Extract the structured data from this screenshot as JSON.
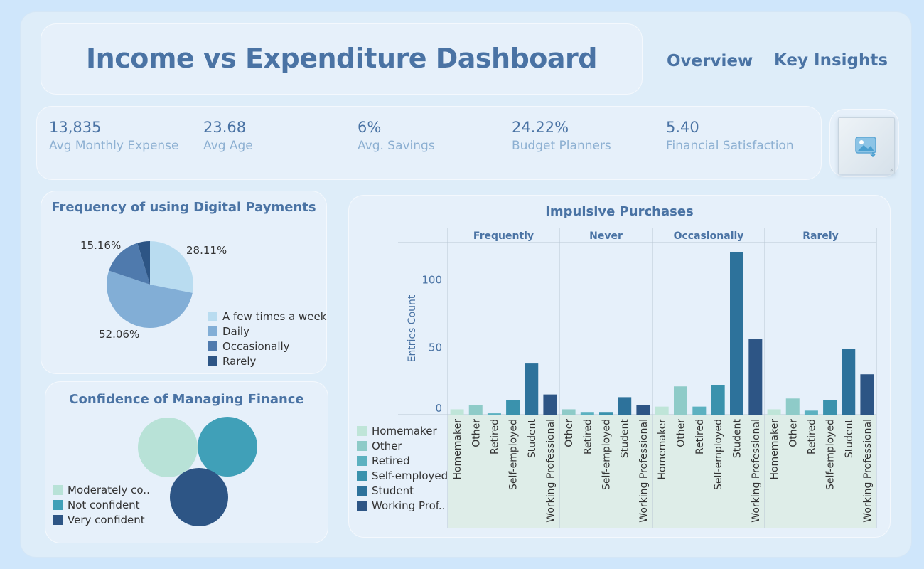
{
  "header": {
    "title": "Income vs Expenditure Dashboard",
    "nav": [
      "Overview",
      "Key Insights"
    ]
  },
  "kpis": [
    {
      "value": "13,835",
      "label": "Avg Monthly Expense"
    },
    {
      "value": "23.68",
      "label": "Avg Age"
    },
    {
      "value": "6%",
      "label": "Avg. Savings"
    },
    {
      "value": "24.22%",
      "label": "Budget Planners"
    },
    {
      "value": "5.40",
      "label": "Financial Satisfaction"
    }
  ],
  "image_placeholder": {
    "icon": "image-icon"
  },
  "digital_payments": {
    "title": "Frequency of using Digital Payments",
    "slices": [
      {
        "label": "A few times a week",
        "value": 28.11,
        "display": "28.11%",
        "color": "#b9dcf0"
      },
      {
        "label": "Daily",
        "value": 52.06,
        "display": "52.06%",
        "color": "#82aed6"
      },
      {
        "label": "Occasionally",
        "value": 15.16,
        "display": "15.16%",
        "color": "#4f7aad"
      },
      {
        "label": "Rarely",
        "value": 4.67,
        "display": "",
        "color": "#2d5585"
      }
    ]
  },
  "confidence": {
    "title": "Confidence of Managing Finance",
    "items": [
      {
        "label": "Moderately co..",
        "color": "#b8e2d7"
      },
      {
        "label": "Not confident",
        "color": "#40a0b8"
      },
      {
        "label": "Very confident",
        "color": "#2d5585"
      }
    ]
  },
  "impulsive": {
    "title": "Impulsive Purchases",
    "ylabel": "Entries Count",
    "yticks": [
      0,
      50,
      100
    ],
    "legend": [
      {
        "label": "Homemaker",
        "color": "#bfe5d8"
      },
      {
        "label": "Other",
        "color": "#8ecbc8"
      },
      {
        "label": "Retired",
        "color": "#5cb1c0"
      },
      {
        "label": "Self-employed",
        "color": "#3a92ad"
      },
      {
        "label": "Student",
        "color": "#2d729b"
      },
      {
        "label": "Working Prof..",
        "color": "#2d5585"
      }
    ]
  },
  "chart_data": {
    "type": "bar",
    "title": "Impulsive Purchases",
    "ylabel": "Entries Count",
    "ylim": [
      0,
      125
    ],
    "panels": [
      {
        "name": "Frequently",
        "categories": [
          "Homemaker",
          "Other",
          "Retired",
          "Self-employed",
          "Student",
          "Working Professional"
        ],
        "values": [
          4,
          7,
          1,
          11,
          38,
          15
        ]
      },
      {
        "name": "Never",
        "categories": [
          "Other",
          "Retired",
          "Self-employed",
          "Student",
          "Working Professional"
        ],
        "values": [
          4,
          2,
          2,
          13,
          7
        ]
      },
      {
        "name": "Occasionally",
        "categories": [
          "Homemaker",
          "Other",
          "Retired",
          "Self-employed",
          "Student",
          "Working Professional"
        ],
        "values": [
          6,
          21,
          6,
          22,
          121,
          56
        ]
      },
      {
        "name": "Rarely",
        "categories": [
          "Homemaker",
          "Other",
          "Retired",
          "Self-employed",
          "Student",
          "Working Professional"
        ],
        "values": [
          4,
          12,
          3,
          11,
          49,
          30
        ]
      }
    ]
  }
}
